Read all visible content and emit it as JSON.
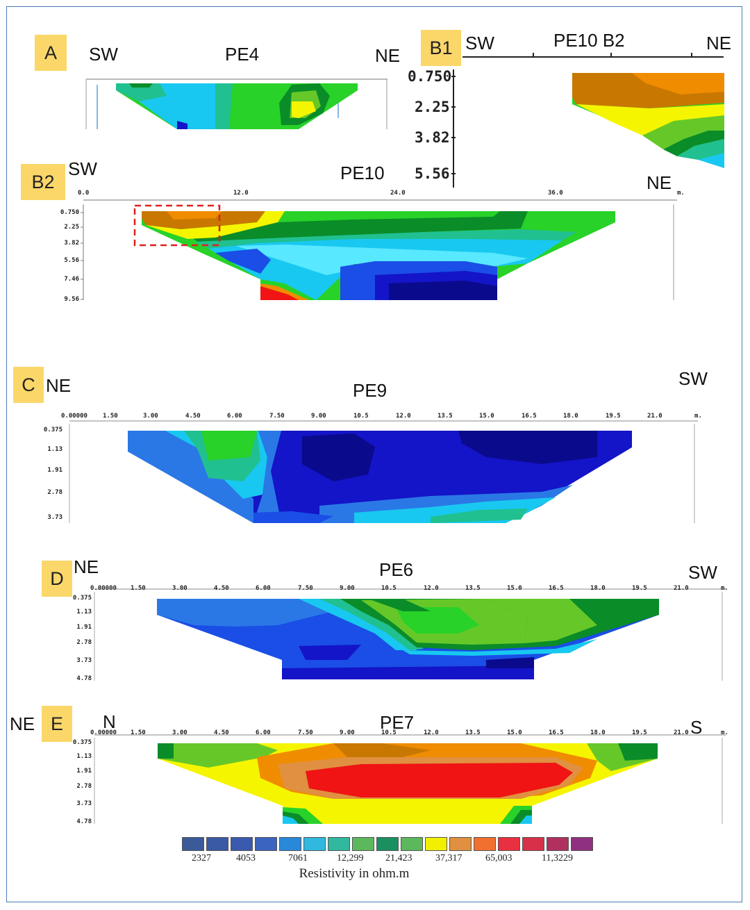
{
  "colors": {
    "darkblue": "#0a0a8c",
    "blue2": "#1414c8",
    "blue3": "#1a4ee6",
    "blue": "#2a78e6",
    "cyan": "#18c8f0",
    "lightcyan": "#58e8ff",
    "teal": "#20c090",
    "green": "#28d228",
    "darkgreen": "#0a8c28",
    "lightgreen": "#66c828",
    "yellow": "#f5f500",
    "orange": "#f08c00",
    "brown": "#c87800",
    "red": "#f01414",
    "tag": "#fbd76a",
    "frame": "#4a78b8"
  },
  "sections": {
    "A": {
      "tag": "A",
      "left_label": "SW",
      "title": "PE4",
      "right_label": "NE"
    },
    "B1": {
      "tag": "B1",
      "left_label": "SW",
      "title": "PE10 B2",
      "right_label": "NE",
      "depth_ticks": [
        "0.750",
        "2.25",
        "3.82",
        "5.56"
      ]
    },
    "B2": {
      "tag": "B2",
      "left_label": "SW",
      "title": "PE10",
      "right_label": "NE",
      "x_ticks": [
        "0.0",
        "12.0",
        "24.0",
        "36.0",
        "m."
      ],
      "depth_ticks": [
        "0.750",
        "2.25",
        "3.82",
        "5.56",
        "7.46",
        "9.56"
      ]
    },
    "C": {
      "tag": "C",
      "left_label": "NE",
      "title": "PE9",
      "right_label": "SW",
      "x_ticks": [
        "0.00000",
        "1.50",
        "3.00",
        "4.50",
        "6.00",
        "7.50",
        "9.00",
        "10.5",
        "12.0",
        "13.5",
        "15.0",
        "16.5",
        "18.0",
        "19.5",
        "21.0",
        "m."
      ],
      "depth_ticks": [
        "0.375",
        "1.13",
        "1.91",
        "2.78",
        "3.73"
      ]
    },
    "D": {
      "tag": "D",
      "left_label": "NE",
      "title": "PE6",
      "right_label": "SW",
      "x_ticks": [
        "0.00000",
        "1.50",
        "3.00",
        "4.50",
        "6.00",
        "7.50",
        "9.00",
        "10.5",
        "12.0",
        "13.5",
        "15.0",
        "16.5",
        "18.0",
        "19.5",
        "21.0",
        "m."
      ],
      "depth_ticks": [
        "0.375",
        "1.13",
        "1.91",
        "2.78",
        "3.73",
        "4.78"
      ]
    },
    "E": {
      "tag": "E",
      "outer_label": "NE",
      "left_label": "N",
      "title": "PE7",
      "right_label": "S",
      "x_ticks": [
        "0.00000",
        "1.50",
        "3.00",
        "4.50",
        "6.00",
        "7.50",
        "9.00",
        "10.5",
        "12.0",
        "13.5",
        "15.0",
        "16.5",
        "18.0",
        "19.5",
        "21.0",
        "m."
      ],
      "depth_ticks": [
        "0.375",
        "1.13",
        "1.91",
        "2.78",
        "3.73",
        "4.78"
      ]
    }
  },
  "legend": {
    "title": "Resistivity in ohm.m",
    "values": [
      "2327",
      "4053",
      "7061",
      "12,299",
      "21,423",
      "37,317",
      "65,003",
      "11,3229"
    ],
    "swatches": [
      "#3a5a9a",
      "#3a5aa6",
      "#3a5ab0",
      "#3a64c0",
      "#2a88d8",
      "#30b8e0",
      "#30b8a0",
      "#5cb85c",
      "#1a9060",
      "#5cb85c",
      "#f0f000",
      "#e09040",
      "#f07030",
      "#e83040",
      "#d83048",
      "#b03060",
      "#903080"
    ]
  }
}
